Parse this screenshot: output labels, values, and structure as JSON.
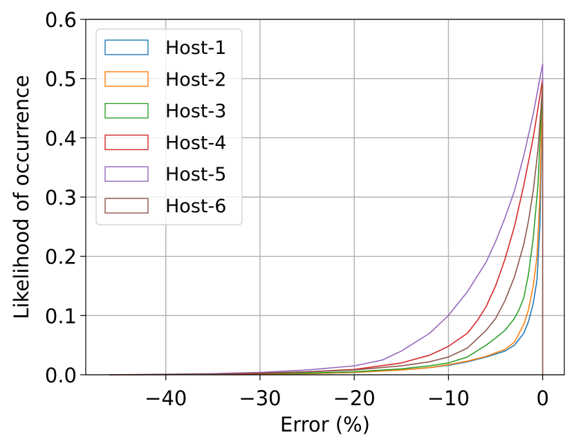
{
  "chart_data": {
    "type": "line",
    "title": "",
    "xlabel": "Error (%)",
    "ylabel": "Likelihood of occurrence",
    "xlim": [
      -48.5,
      2.3
    ],
    "ylim": [
      0.0,
      0.6
    ],
    "xticks": [
      -40,
      -30,
      -20,
      -10,
      0
    ],
    "xtick_labels": [
      "−40",
      "−30",
      "−20",
      "−10",
      "0"
    ],
    "yticks": [
      0.0,
      0.1,
      0.2,
      0.3,
      0.4,
      0.5,
      0.6
    ],
    "ytick_labels": [
      "0.0",
      "0.1",
      "0.2",
      "0.3",
      "0.4",
      "0.5",
      "0.6"
    ],
    "grid": true,
    "legend_position": "top-left",
    "series": [
      {
        "name": "Host-1",
        "color": "#1f77b4",
        "points": [
          [
            -46,
            0
          ],
          [
            -35,
            0.0005
          ],
          [
            -25,
            0.002
          ],
          [
            -20,
            0.004
          ],
          [
            -15,
            0.008
          ],
          [
            -12,
            0.012
          ],
          [
            -10,
            0.016
          ],
          [
            -8,
            0.022
          ],
          [
            -6,
            0.03
          ],
          [
            -4,
            0.04
          ],
          [
            -3,
            0.05
          ],
          [
            -2.5,
            0.06
          ],
          [
            -2,
            0.07
          ],
          [
            -1.5,
            0.09
          ],
          [
            -1,
            0.12
          ],
          [
            -0.6,
            0.16
          ],
          [
            -0.3,
            0.25
          ],
          [
            -0.1,
            0.4
          ],
          [
            0,
            0.49
          ]
        ]
      },
      {
        "name": "Host-2",
        "color": "#ff7f0e",
        "points": [
          [
            -46,
            0
          ],
          [
            -35,
            0.0005
          ],
          [
            -25,
            0.002
          ],
          [
            -20,
            0.004
          ],
          [
            -15,
            0.008
          ],
          [
            -12,
            0.012
          ],
          [
            -10,
            0.017
          ],
          [
            -8,
            0.023
          ],
          [
            -6,
            0.031
          ],
          [
            -4,
            0.043
          ],
          [
            -3,
            0.055
          ],
          [
            -2.5,
            0.07
          ],
          [
            -2,
            0.085
          ],
          [
            -1.5,
            0.11
          ],
          [
            -1,
            0.15
          ],
          [
            -0.6,
            0.2
          ],
          [
            -0.3,
            0.3
          ],
          [
            -0.1,
            0.42
          ],
          [
            0,
            0.49
          ]
        ]
      },
      {
        "name": "Host-3",
        "color": "#2ca02c",
        "points": [
          [
            -46,
            0
          ],
          [
            -35,
            0.0005
          ],
          [
            -25,
            0.003
          ],
          [
            -20,
            0.005
          ],
          [
            -15,
            0.01
          ],
          [
            -12,
            0.015
          ],
          [
            -10,
            0.02
          ],
          [
            -8,
            0.03
          ],
          [
            -6,
            0.05
          ],
          [
            -5,
            0.062
          ],
          [
            -4,
            0.075
          ],
          [
            -3,
            0.095
          ],
          [
            -2.5,
            0.11
          ],
          [
            -2,
            0.13
          ],
          [
            -1.5,
            0.17
          ],
          [
            -1,
            0.23
          ],
          [
            -0.5,
            0.32
          ],
          [
            -0.2,
            0.42
          ],
          [
            0,
            0.49
          ]
        ]
      },
      {
        "name": "Host-4",
        "color": "#d62728",
        "points": [
          [
            -46,
            0
          ],
          [
            -35,
            0.0005
          ],
          [
            -30,
            0.002
          ],
          [
            -25,
            0.005
          ],
          [
            -20,
            0.009
          ],
          [
            -15,
            0.02
          ],
          [
            -12,
            0.033
          ],
          [
            -10,
            0.048
          ],
          [
            -8,
            0.07
          ],
          [
            -7,
            0.09
          ],
          [
            -6,
            0.115
          ],
          [
            -5,
            0.15
          ],
          [
            -4,
            0.195
          ],
          [
            -3,
            0.25
          ],
          [
            -2,
            0.32
          ],
          [
            -1,
            0.4
          ],
          [
            -0.5,
            0.45
          ],
          [
            0,
            0.5
          ]
        ]
      },
      {
        "name": "Host-5",
        "color": "#9467bd",
        "points": [
          [
            -46,
            0
          ],
          [
            -35,
            0.002
          ],
          [
            -30,
            0.004
          ],
          [
            -25,
            0.008
          ],
          [
            -20,
            0.015
          ],
          [
            -17,
            0.025
          ],
          [
            -15,
            0.04
          ],
          [
            -13,
            0.06
          ],
          [
            -12,
            0.07
          ],
          [
            -10,
            0.1
          ],
          [
            -8,
            0.14
          ],
          [
            -6,
            0.19
          ],
          [
            -5,
            0.225
          ],
          [
            -4,
            0.265
          ],
          [
            -3,
            0.31
          ],
          [
            -2,
            0.37
          ],
          [
            -1,
            0.44
          ],
          [
            0,
            0.525
          ]
        ]
      },
      {
        "name": "Host-6",
        "color": "#8c564b",
        "points": [
          [
            -46,
            0
          ],
          [
            -35,
            0.001
          ],
          [
            -30,
            0.003
          ],
          [
            -25,
            0.005
          ],
          [
            -20,
            0.008
          ],
          [
            -15,
            0.015
          ],
          [
            -12,
            0.022
          ],
          [
            -10,
            0.03
          ],
          [
            -8,
            0.045
          ],
          [
            -7,
            0.06
          ],
          [
            -6,
            0.075
          ],
          [
            -5,
            0.095
          ],
          [
            -4,
            0.125
          ],
          [
            -3,
            0.165
          ],
          [
            -2,
            0.22
          ],
          [
            -1.5,
            0.26
          ],
          [
            -1,
            0.31
          ],
          [
            -0.5,
            0.38
          ],
          [
            0,
            0.49
          ]
        ]
      }
    ]
  }
}
